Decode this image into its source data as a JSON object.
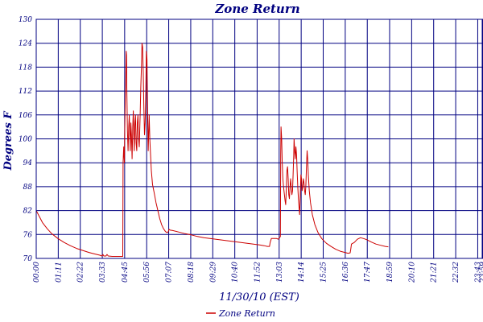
{
  "chart_data": {
    "type": "line",
    "title": "Zone Return",
    "xlabel": "11/30/10 (EST)",
    "ylabel": "Degrees F",
    "ylim": [
      70,
      130
    ],
    "yticks": [
      70,
      76,
      82,
      88,
      94,
      100,
      106,
      112,
      118,
      124,
      130
    ],
    "xlim": [
      0,
      1440
    ],
    "xticks": [
      {
        "minute": 0,
        "label": "00:00"
      },
      {
        "minute": 71,
        "label": "01:11"
      },
      {
        "minute": 142,
        "label": "02:22"
      },
      {
        "minute": 213,
        "label": "03:33"
      },
      {
        "minute": 285,
        "label": "04:45"
      },
      {
        "minute": 356,
        "label": "05:56"
      },
      {
        "minute": 427,
        "label": "07:07"
      },
      {
        "minute": 498,
        "label": "08:18"
      },
      {
        "minute": 569,
        "label": "09:29"
      },
      {
        "minute": 640,
        "label": "10:40"
      },
      {
        "minute": 712,
        "label": "11:52"
      },
      {
        "minute": 783,
        "label": "13:03"
      },
      {
        "minute": 854,
        "label": "14:14"
      },
      {
        "minute": 925,
        "label": "15:25"
      },
      {
        "minute": 996,
        "label": "16:36"
      },
      {
        "minute": 1067,
        "label": "17:47"
      },
      {
        "minute": 1139,
        "label": "18:59"
      },
      {
        "minute": 1210,
        "label": "20:10"
      },
      {
        "minute": 1281,
        "label": "21:21"
      },
      {
        "minute": 1352,
        "label": "22:32"
      },
      {
        "minute": 1423,
        "label": "23:43"
      },
      {
        "minute": 1439,
        "label": "23:59"
      }
    ],
    "grid": true,
    "legend_position": "bottom",
    "color": "#cc0000",
    "series": [
      {
        "name": "Zone Return",
        "points": [
          [
            0,
            82
          ],
          [
            10,
            80.5
          ],
          [
            20,
            79
          ],
          [
            35,
            77.5
          ],
          [
            50,
            76.2
          ],
          [
            70,
            75
          ],
          [
            90,
            74
          ],
          [
            110,
            73.2
          ],
          [
            130,
            72.5
          ],
          [
            150,
            72
          ],
          [
            170,
            71.5
          ],
          [
            190,
            71.1
          ],
          [
            205,
            70.8
          ],
          [
            212,
            70.6
          ],
          [
            215,
            71
          ],
          [
            218,
            70.6
          ],
          [
            225,
            70.6
          ],
          [
            228,
            71
          ],
          [
            232,
            70.6
          ],
          [
            245,
            70.5
          ],
          [
            260,
            70.5
          ],
          [
            270,
            70.5
          ],
          [
            279,
            70.5
          ],
          [
            280,
            94
          ],
          [
            282,
            98
          ],
          [
            284,
            94
          ],
          [
            285,
            100
          ],
          [
            287,
            110
          ],
          [
            289,
            117
          ],
          [
            290,
            122
          ],
          [
            291,
            121
          ],
          [
            292,
            113
          ],
          [
            294,
            102
          ],
          [
            296,
            97
          ],
          [
            298,
            103
          ],
          [
            300,
            106
          ],
          [
            302,
            100
          ],
          [
            303,
            97
          ],
          [
            305,
            104
          ],
          [
            307,
            101
          ],
          [
            309,
            95
          ],
          [
            311,
            103
          ],
          [
            313,
            107
          ],
          [
            315,
            100
          ],
          [
            316,
            97
          ],
          [
            318,
            104
          ],
          [
            320,
            106
          ],
          [
            322,
            99
          ],
          [
            324,
            97
          ],
          [
            326,
            104
          ],
          [
            328,
            106
          ],
          [
            330,
            100
          ],
          [
            332,
            98
          ],
          [
            335,
            106
          ],
          [
            337,
            113
          ],
          [
            339,
            118
          ],
          [
            341,
            124
          ],
          [
            343,
            123
          ],
          [
            345,
            116
          ],
          [
            347,
            108
          ],
          [
            349,
            101
          ],
          [
            351,
            104
          ],
          [
            353,
            112
          ],
          [
            355,
            122
          ],
          [
            357,
            120
          ],
          [
            359,
            106
          ],
          [
            361,
            97
          ],
          [
            363,
            103
          ],
          [
            364,
            106
          ],
          [
            366,
            100
          ],
          [
            368,
            97
          ],
          [
            371,
            92
          ],
          [
            375,
            88.5
          ],
          [
            380,
            86.5
          ],
          [
            386,
            84
          ],
          [
            392,
            82
          ],
          [
            398,
            80
          ],
          [
            404,
            78.5
          ],
          [
            410,
            77.5
          ],
          [
            416,
            76.8
          ],
          [
            420,
            76.5
          ],
          [
            424,
            76.5
          ],
          [
            426,
            76.8
          ],
          [
            428,
            77.3
          ],
          [
            432,
            77.1
          ],
          [
            440,
            77
          ],
          [
            460,
            76.6
          ],
          [
            480,
            76.2
          ],
          [
            500,
            75.9
          ],
          [
            520,
            75.5
          ],
          [
            540,
            75.2
          ],
          [
            560,
            75
          ],
          [
            580,
            74.8
          ],
          [
            600,
            74.6
          ],
          [
            620,
            74.4
          ],
          [
            640,
            74.2
          ],
          [
            660,
            74
          ],
          [
            680,
            73.8
          ],
          [
            700,
            73.6
          ],
          [
            720,
            73.4
          ],
          [
            735,
            73.2
          ],
          [
            745,
            73
          ],
          [
            752,
            73
          ],
          [
            754,
            74
          ],
          [
            758,
            75
          ],
          [
            765,
            75
          ],
          [
            775,
            75
          ],
          [
            780,
            74.8
          ],
          [
            784,
            75.2
          ],
          [
            787,
            75.5
          ],
          [
            788,
            96
          ],
          [
            789,
            103
          ],
          [
            791,
            100
          ],
          [
            793,
            94
          ],
          [
            795,
            90
          ],
          [
            797,
            88
          ],
          [
            800,
            86
          ],
          [
            802,
            84.5
          ],
          [
            804,
            83.5
          ],
          [
            806,
            87
          ],
          [
            808,
            92
          ],
          [
            810,
            93
          ],
          [
            812,
            90
          ],
          [
            814,
            86
          ],
          [
            816,
            85
          ],
          [
            818,
            88
          ],
          [
            820,
            90
          ],
          [
            822,
            88
          ],
          [
            824,
            86
          ],
          [
            826,
            87
          ],
          [
            828,
            91
          ],
          [
            830,
            96
          ],
          [
            831,
            100
          ],
          [
            833,
            97
          ],
          [
            835,
            95
          ],
          [
            837,
            98
          ],
          [
            839,
            96
          ],
          [
            841,
            92
          ],
          [
            843,
            88
          ],
          [
            845,
            85
          ],
          [
            847,
            83
          ],
          [
            849,
            81
          ],
          [
            851,
            86
          ],
          [
            853,
            91
          ],
          [
            855,
            90
          ],
          [
            857,
            87
          ],
          [
            859,
            88
          ],
          [
            861,
            90
          ],
          [
            863,
            89
          ],
          [
            865,
            87
          ],
          [
            867,
            86
          ],
          [
            869,
            88
          ],
          [
            871,
            93
          ],
          [
            873,
            97
          ],
          [
            875,
            95
          ],
          [
            877,
            91
          ],
          [
            880,
            87
          ],
          [
            884,
            84
          ],
          [
            890,
            81
          ],
          [
            898,
            78.5
          ],
          [
            908,
            76.5
          ],
          [
            920,
            75
          ],
          [
            935,
            73.8
          ],
          [
            950,
            73
          ],
          [
            965,
            72.3
          ],
          [
            980,
            71.8
          ],
          [
            995,
            71.5
          ],
          [
            1005,
            71.3
          ],
          [
            1012,
            71.4
          ],
          [
            1014,
            72.4
          ],
          [
            1016,
            73.6
          ],
          [
            1025,
            74
          ],
          [
            1035,
            74.8
          ],
          [
            1045,
            75.2
          ],
          [
            1055,
            75
          ],
          [
            1065,
            74.7
          ],
          [
            1080,
            74.1
          ],
          [
            1095,
            73.6
          ],
          [
            1110,
            73.3
          ],
          [
            1125,
            73
          ],
          [
            1135,
            72.9
          ]
        ]
      }
    ]
  }
}
